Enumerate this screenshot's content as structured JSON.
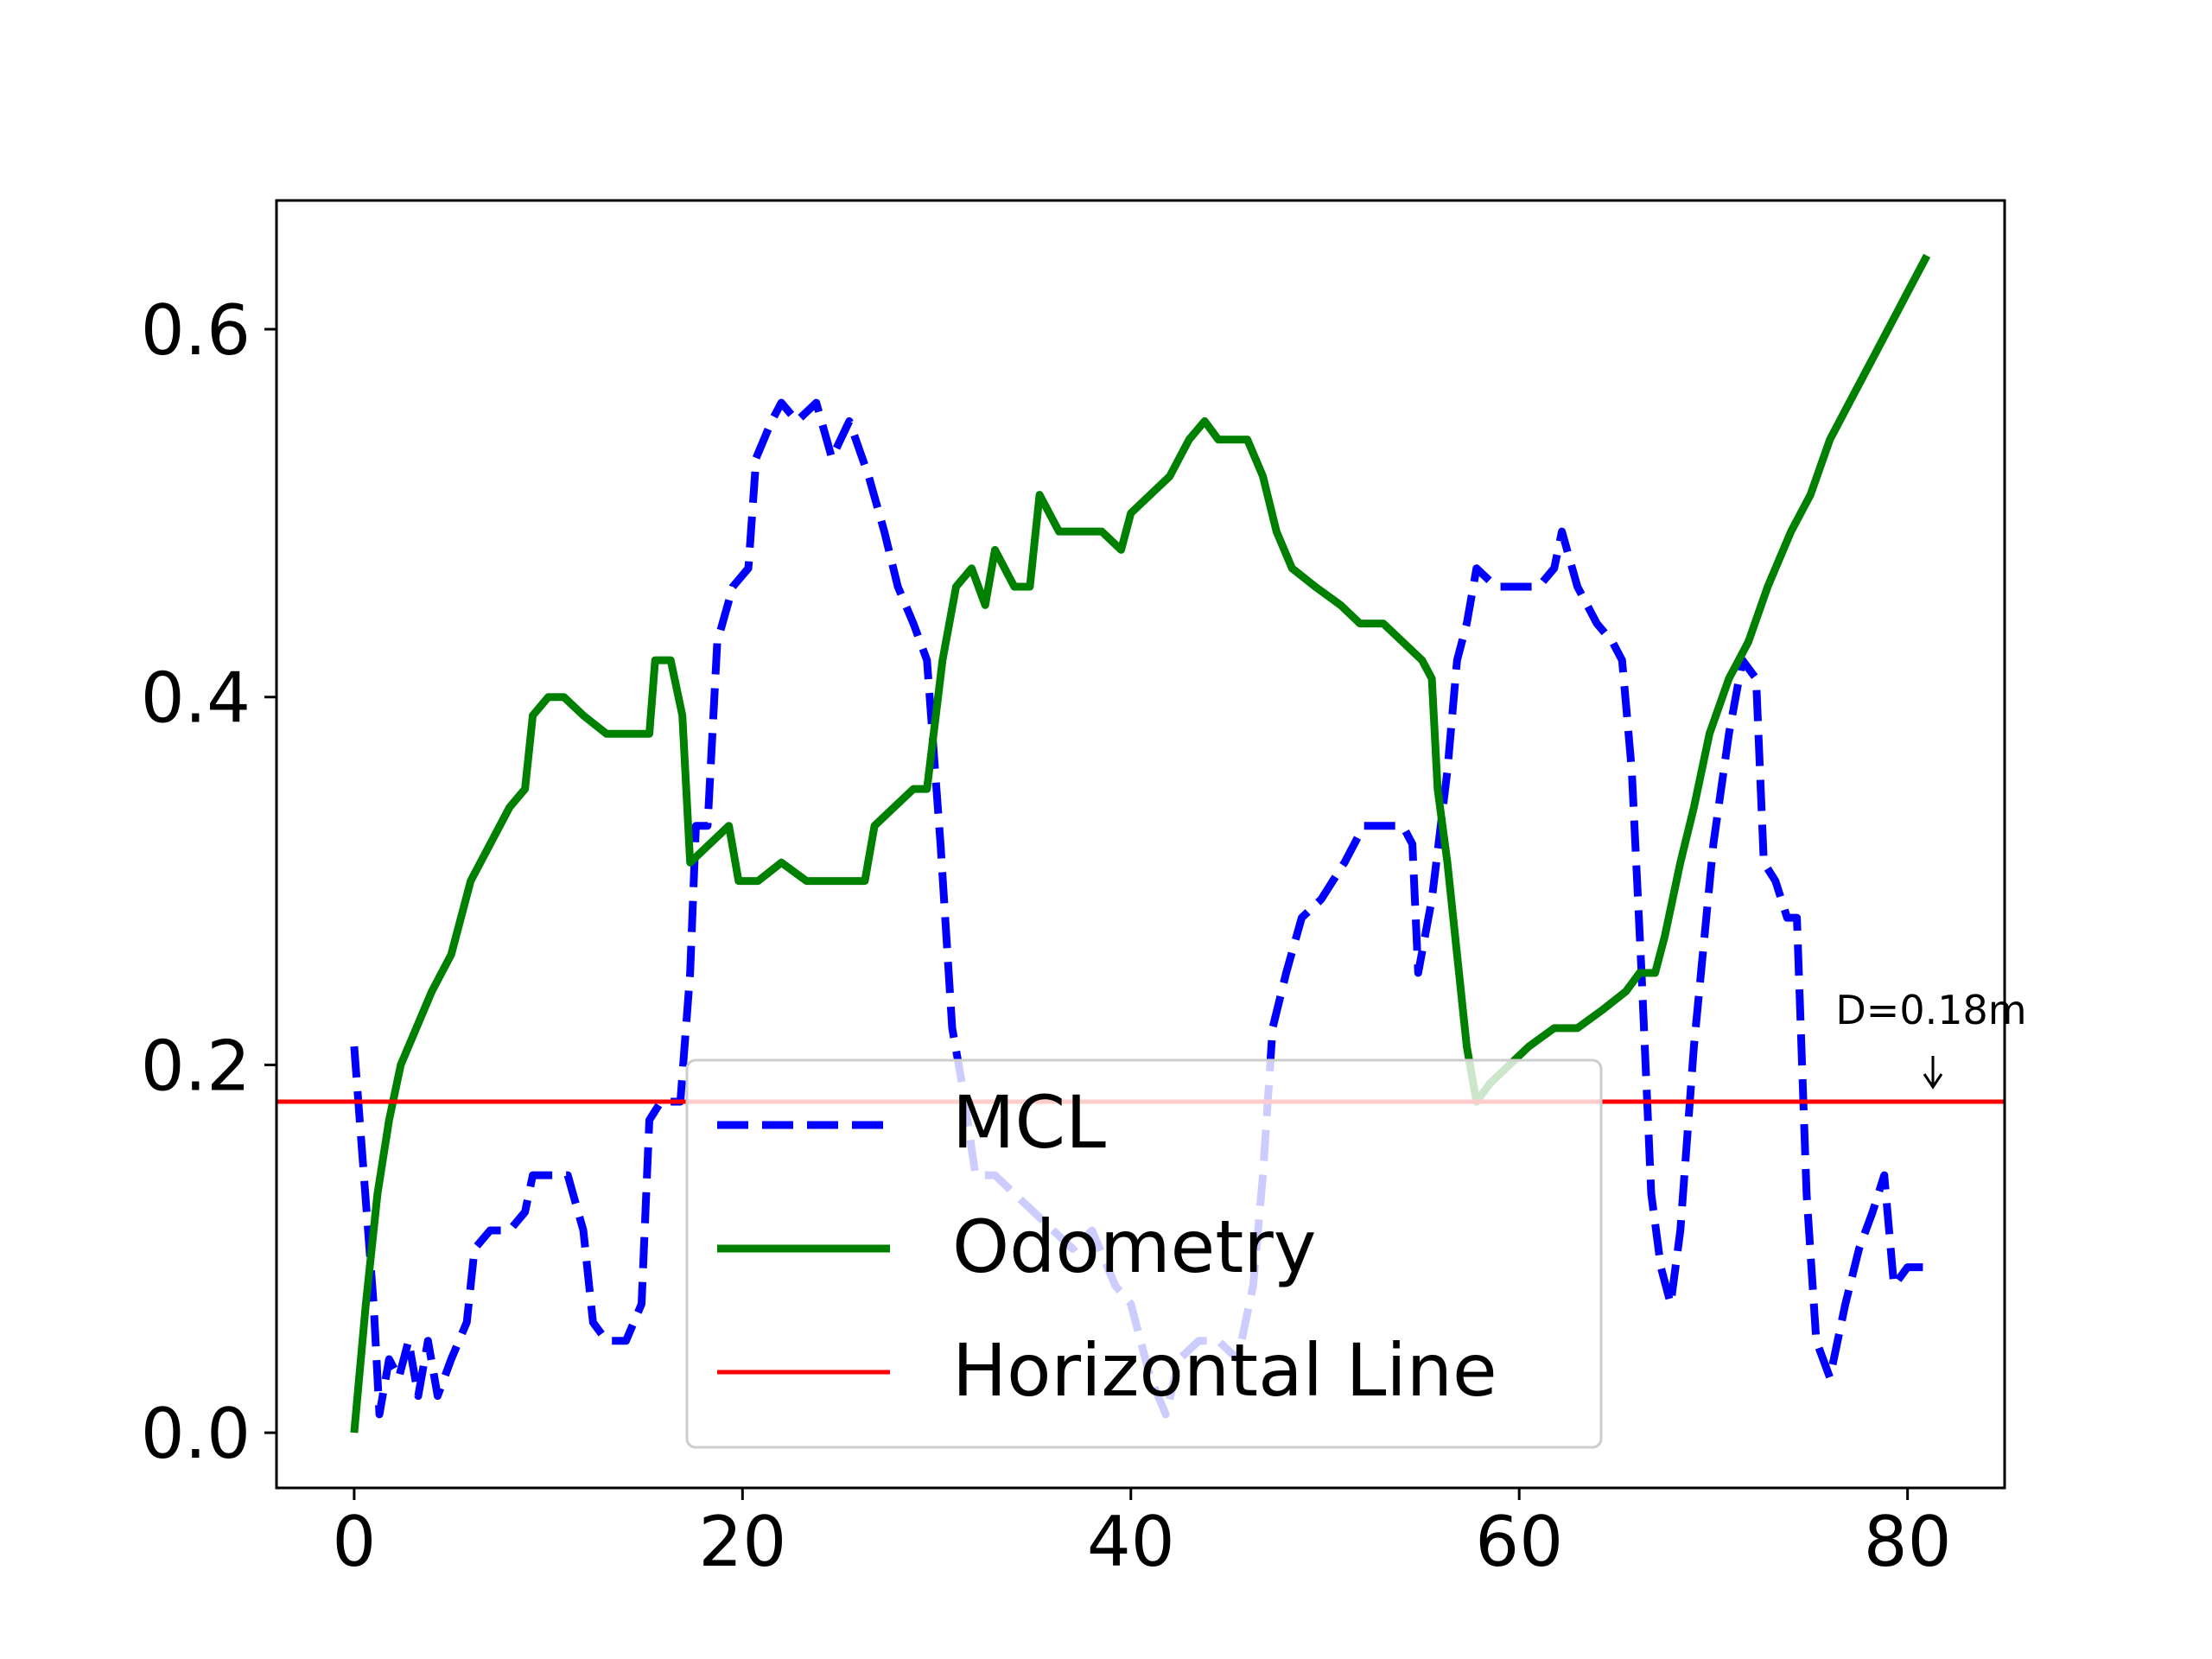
{
  "chart_data": {
    "type": "line",
    "title": "",
    "xlabel": "",
    "ylabel": "",
    "xlim": [
      -4,
      85
    ],
    "ylim": [
      -0.03,
      0.67
    ],
    "x_ticks": [
      0,
      20,
      40,
      60,
      80
    ],
    "y_ticks": [
      0.0,
      0.2,
      0.4,
      0.6
    ],
    "x_tick_labels": [
      "0",
      "20",
      "40",
      "60",
      "80"
    ],
    "y_tick_labels": [
      "0.0",
      "0.2",
      "0.4",
      "0.6"
    ],
    "grid": false,
    "legend_position": "lower-center",
    "series": [
      {
        "name": "MCL",
        "color": "#0000ff",
        "style": "dashed",
        "points": [
          [
            0,
            0.21
          ],
          [
            0.5,
            0.14
          ],
          [
            1.0,
            0.07
          ],
          [
            1.3,
            0.01
          ],
          [
            1.8,
            0.04
          ],
          [
            2.3,
            0.03
          ],
          [
            2.8,
            0.05
          ],
          [
            3.3,
            0.02
          ],
          [
            3.8,
            0.05
          ],
          [
            4.3,
            0.02
          ],
          [
            5.0,
            0.04
          ],
          [
            5.8,
            0.06
          ],
          [
            6.2,
            0.1
          ],
          [
            7.0,
            0.11
          ],
          [
            8.0,
            0.11
          ],
          [
            8.8,
            0.12
          ],
          [
            9.2,
            0.14
          ],
          [
            10.0,
            0.14
          ],
          [
            11.0,
            0.14
          ],
          [
            11.8,
            0.11
          ],
          [
            12.3,
            0.06
          ],
          [
            13.0,
            0.05
          ],
          [
            14.0,
            0.05
          ],
          [
            14.8,
            0.07
          ],
          [
            15.2,
            0.17
          ],
          [
            15.8,
            0.18
          ],
          [
            16.8,
            0.18
          ],
          [
            17.3,
            0.25
          ],
          [
            17.6,
            0.33
          ],
          [
            18.2,
            0.33
          ],
          [
            18.7,
            0.43
          ],
          [
            19.5,
            0.46
          ],
          [
            20.3,
            0.47
          ],
          [
            20.7,
            0.53
          ],
          [
            21.5,
            0.55
          ],
          [
            22.0,
            0.56
          ],
          [
            22.8,
            0.55
          ],
          [
            23.8,
            0.56
          ],
          [
            24.6,
            0.53
          ],
          [
            25.5,
            0.55
          ],
          [
            26.5,
            0.52
          ],
          [
            27.3,
            0.49
          ],
          [
            28.0,
            0.46
          ],
          [
            28.8,
            0.44
          ],
          [
            29.5,
            0.42
          ],
          [
            30.2,
            0.32
          ],
          [
            30.8,
            0.22
          ],
          [
            31.3,
            0.19
          ],
          [
            32.0,
            0.14
          ],
          [
            33.0,
            0.14
          ],
          [
            34.0,
            0.13
          ],
          [
            35.0,
            0.12
          ],
          [
            36.0,
            0.11
          ],
          [
            37.0,
            0.1
          ],
          [
            38.0,
            0.11
          ],
          [
            39.2,
            0.08
          ],
          [
            40.0,
            0.07
          ],
          [
            41.0,
            0.03
          ],
          [
            41.8,
            0.01
          ],
          [
            42.5,
            0.04
          ],
          [
            43.5,
            0.05
          ],
          [
            44.5,
            0.05
          ],
          [
            45.5,
            0.04
          ],
          [
            46.3,
            0.08
          ],
          [
            46.8,
            0.14
          ],
          [
            47.3,
            0.22
          ],
          [
            48.0,
            0.25
          ],
          [
            48.8,
            0.28
          ],
          [
            49.8,
            0.29
          ],
          [
            51.0,
            0.31
          ],
          [
            52.0,
            0.33
          ],
          [
            53.0,
            0.33
          ],
          [
            54.0,
            0.33
          ],
          [
            54.5,
            0.32
          ],
          [
            54.8,
            0.25
          ],
          [
            55.5,
            0.29
          ],
          [
            56.3,
            0.36
          ],
          [
            56.8,
            0.42
          ],
          [
            57.3,
            0.44
          ],
          [
            57.8,
            0.47
          ],
          [
            58.8,
            0.46
          ],
          [
            60.0,
            0.46
          ],
          [
            61.0,
            0.46
          ],
          [
            61.8,
            0.47
          ],
          [
            62.2,
            0.49
          ],
          [
            63.0,
            0.46
          ],
          [
            64.0,
            0.44
          ],
          [
            64.8,
            0.43
          ],
          [
            65.3,
            0.42
          ],
          [
            65.8,
            0.36
          ],
          [
            66.3,
            0.25
          ],
          [
            66.8,
            0.13
          ],
          [
            67.3,
            0.09
          ],
          [
            67.8,
            0.07
          ],
          [
            68.3,
            0.11
          ],
          [
            69.0,
            0.21
          ],
          [
            70.0,
            0.32
          ],
          [
            70.8,
            0.38
          ],
          [
            71.5,
            0.42
          ],
          [
            72.2,
            0.41
          ],
          [
            72.6,
            0.31
          ],
          [
            73.2,
            0.3
          ],
          [
            73.8,
            0.28
          ],
          [
            74.3,
            0.28
          ],
          [
            74.8,
            0.13
          ],
          [
            75.3,
            0.05
          ],
          [
            76.0,
            0.03
          ],
          [
            76.8,
            0.07
          ],
          [
            77.5,
            0.1
          ],
          [
            78.2,
            0.12
          ],
          [
            78.8,
            0.14
          ],
          [
            79.3,
            0.08
          ],
          [
            80.0,
            0.09
          ],
          [
            81.0,
            0.09
          ]
        ]
      },
      {
        "name": "Odometry",
        "color": "#008000",
        "style": "solid",
        "points": [
          [
            0,
            0.0
          ],
          [
            0.6,
            0.07
          ],
          [
            1.2,
            0.13
          ],
          [
            1.8,
            0.17
          ],
          [
            2.4,
            0.2
          ],
          [
            3.2,
            0.22
          ],
          [
            4.0,
            0.24
          ],
          [
            5.0,
            0.26
          ],
          [
            6.0,
            0.3
          ],
          [
            7.0,
            0.32
          ],
          [
            8.0,
            0.34
          ],
          [
            8.8,
            0.35
          ],
          [
            9.2,
            0.39
          ],
          [
            10.0,
            0.4
          ],
          [
            10.8,
            0.4
          ],
          [
            11.8,
            0.39
          ],
          [
            13.0,
            0.38
          ],
          [
            14.5,
            0.38
          ],
          [
            15.2,
            0.38
          ],
          [
            15.5,
            0.42
          ],
          [
            16.3,
            0.42
          ],
          [
            16.9,
            0.39
          ],
          [
            17.3,
            0.31
          ],
          [
            18.3,
            0.32
          ],
          [
            19.3,
            0.33
          ],
          [
            19.8,
            0.3
          ],
          [
            20.8,
            0.3
          ],
          [
            22.0,
            0.31
          ],
          [
            23.3,
            0.3
          ],
          [
            24.5,
            0.3
          ],
          [
            25.5,
            0.3
          ],
          [
            26.3,
            0.3
          ],
          [
            26.8,
            0.33
          ],
          [
            27.8,
            0.34
          ],
          [
            28.8,
            0.35
          ],
          [
            29.5,
            0.35
          ],
          [
            30.3,
            0.42
          ],
          [
            31.0,
            0.46
          ],
          [
            31.8,
            0.47
          ],
          [
            32.5,
            0.45
          ],
          [
            33.0,
            0.48
          ],
          [
            34.0,
            0.46
          ],
          [
            34.8,
            0.46
          ],
          [
            35.3,
            0.51
          ],
          [
            36.3,
            0.49
          ],
          [
            37.5,
            0.49
          ],
          [
            38.5,
            0.49
          ],
          [
            39.5,
            0.48
          ],
          [
            40.0,
            0.5
          ],
          [
            41.0,
            0.51
          ],
          [
            42.0,
            0.52
          ],
          [
            43.0,
            0.54
          ],
          [
            43.8,
            0.55
          ],
          [
            44.5,
            0.54
          ],
          [
            45.2,
            0.54
          ],
          [
            46.0,
            0.54
          ],
          [
            46.8,
            0.52
          ],
          [
            47.5,
            0.49
          ],
          [
            48.3,
            0.47
          ],
          [
            49.5,
            0.46
          ],
          [
            50.8,
            0.45
          ],
          [
            51.8,
            0.44
          ],
          [
            53.0,
            0.44
          ],
          [
            54.0,
            0.43
          ],
          [
            55.0,
            0.42
          ],
          [
            55.5,
            0.41
          ],
          [
            55.8,
            0.35
          ],
          [
            56.3,
            0.31
          ],
          [
            56.8,
            0.26
          ],
          [
            57.3,
            0.21
          ],
          [
            57.8,
            0.18
          ],
          [
            58.5,
            0.19
          ],
          [
            59.5,
            0.2
          ],
          [
            60.5,
            0.21
          ],
          [
            61.8,
            0.22
          ],
          [
            63.0,
            0.22
          ],
          [
            64.3,
            0.23
          ],
          [
            65.5,
            0.24
          ],
          [
            66.2,
            0.25
          ],
          [
            67.0,
            0.25
          ],
          [
            67.5,
            0.27
          ],
          [
            68.3,
            0.31
          ],
          [
            69.0,
            0.34
          ],
          [
            69.8,
            0.38
          ],
          [
            70.8,
            0.41
          ],
          [
            71.8,
            0.43
          ],
          [
            72.8,
            0.46
          ],
          [
            74.0,
            0.49
          ],
          [
            75.0,
            0.51
          ],
          [
            76.0,
            0.54
          ],
          [
            77.0,
            0.56
          ],
          [
            78.0,
            0.58
          ],
          [
            79.0,
            0.6
          ],
          [
            80.0,
            0.62
          ],
          [
            81.0,
            0.64
          ]
        ]
      },
      {
        "name": "Horizontal Line",
        "color": "#ff0000",
        "style": "solid",
        "y": 0.18
      }
    ],
    "annotation": {
      "text": "D=0.18m",
      "x": 81.2,
      "y": 0.18
    }
  }
}
